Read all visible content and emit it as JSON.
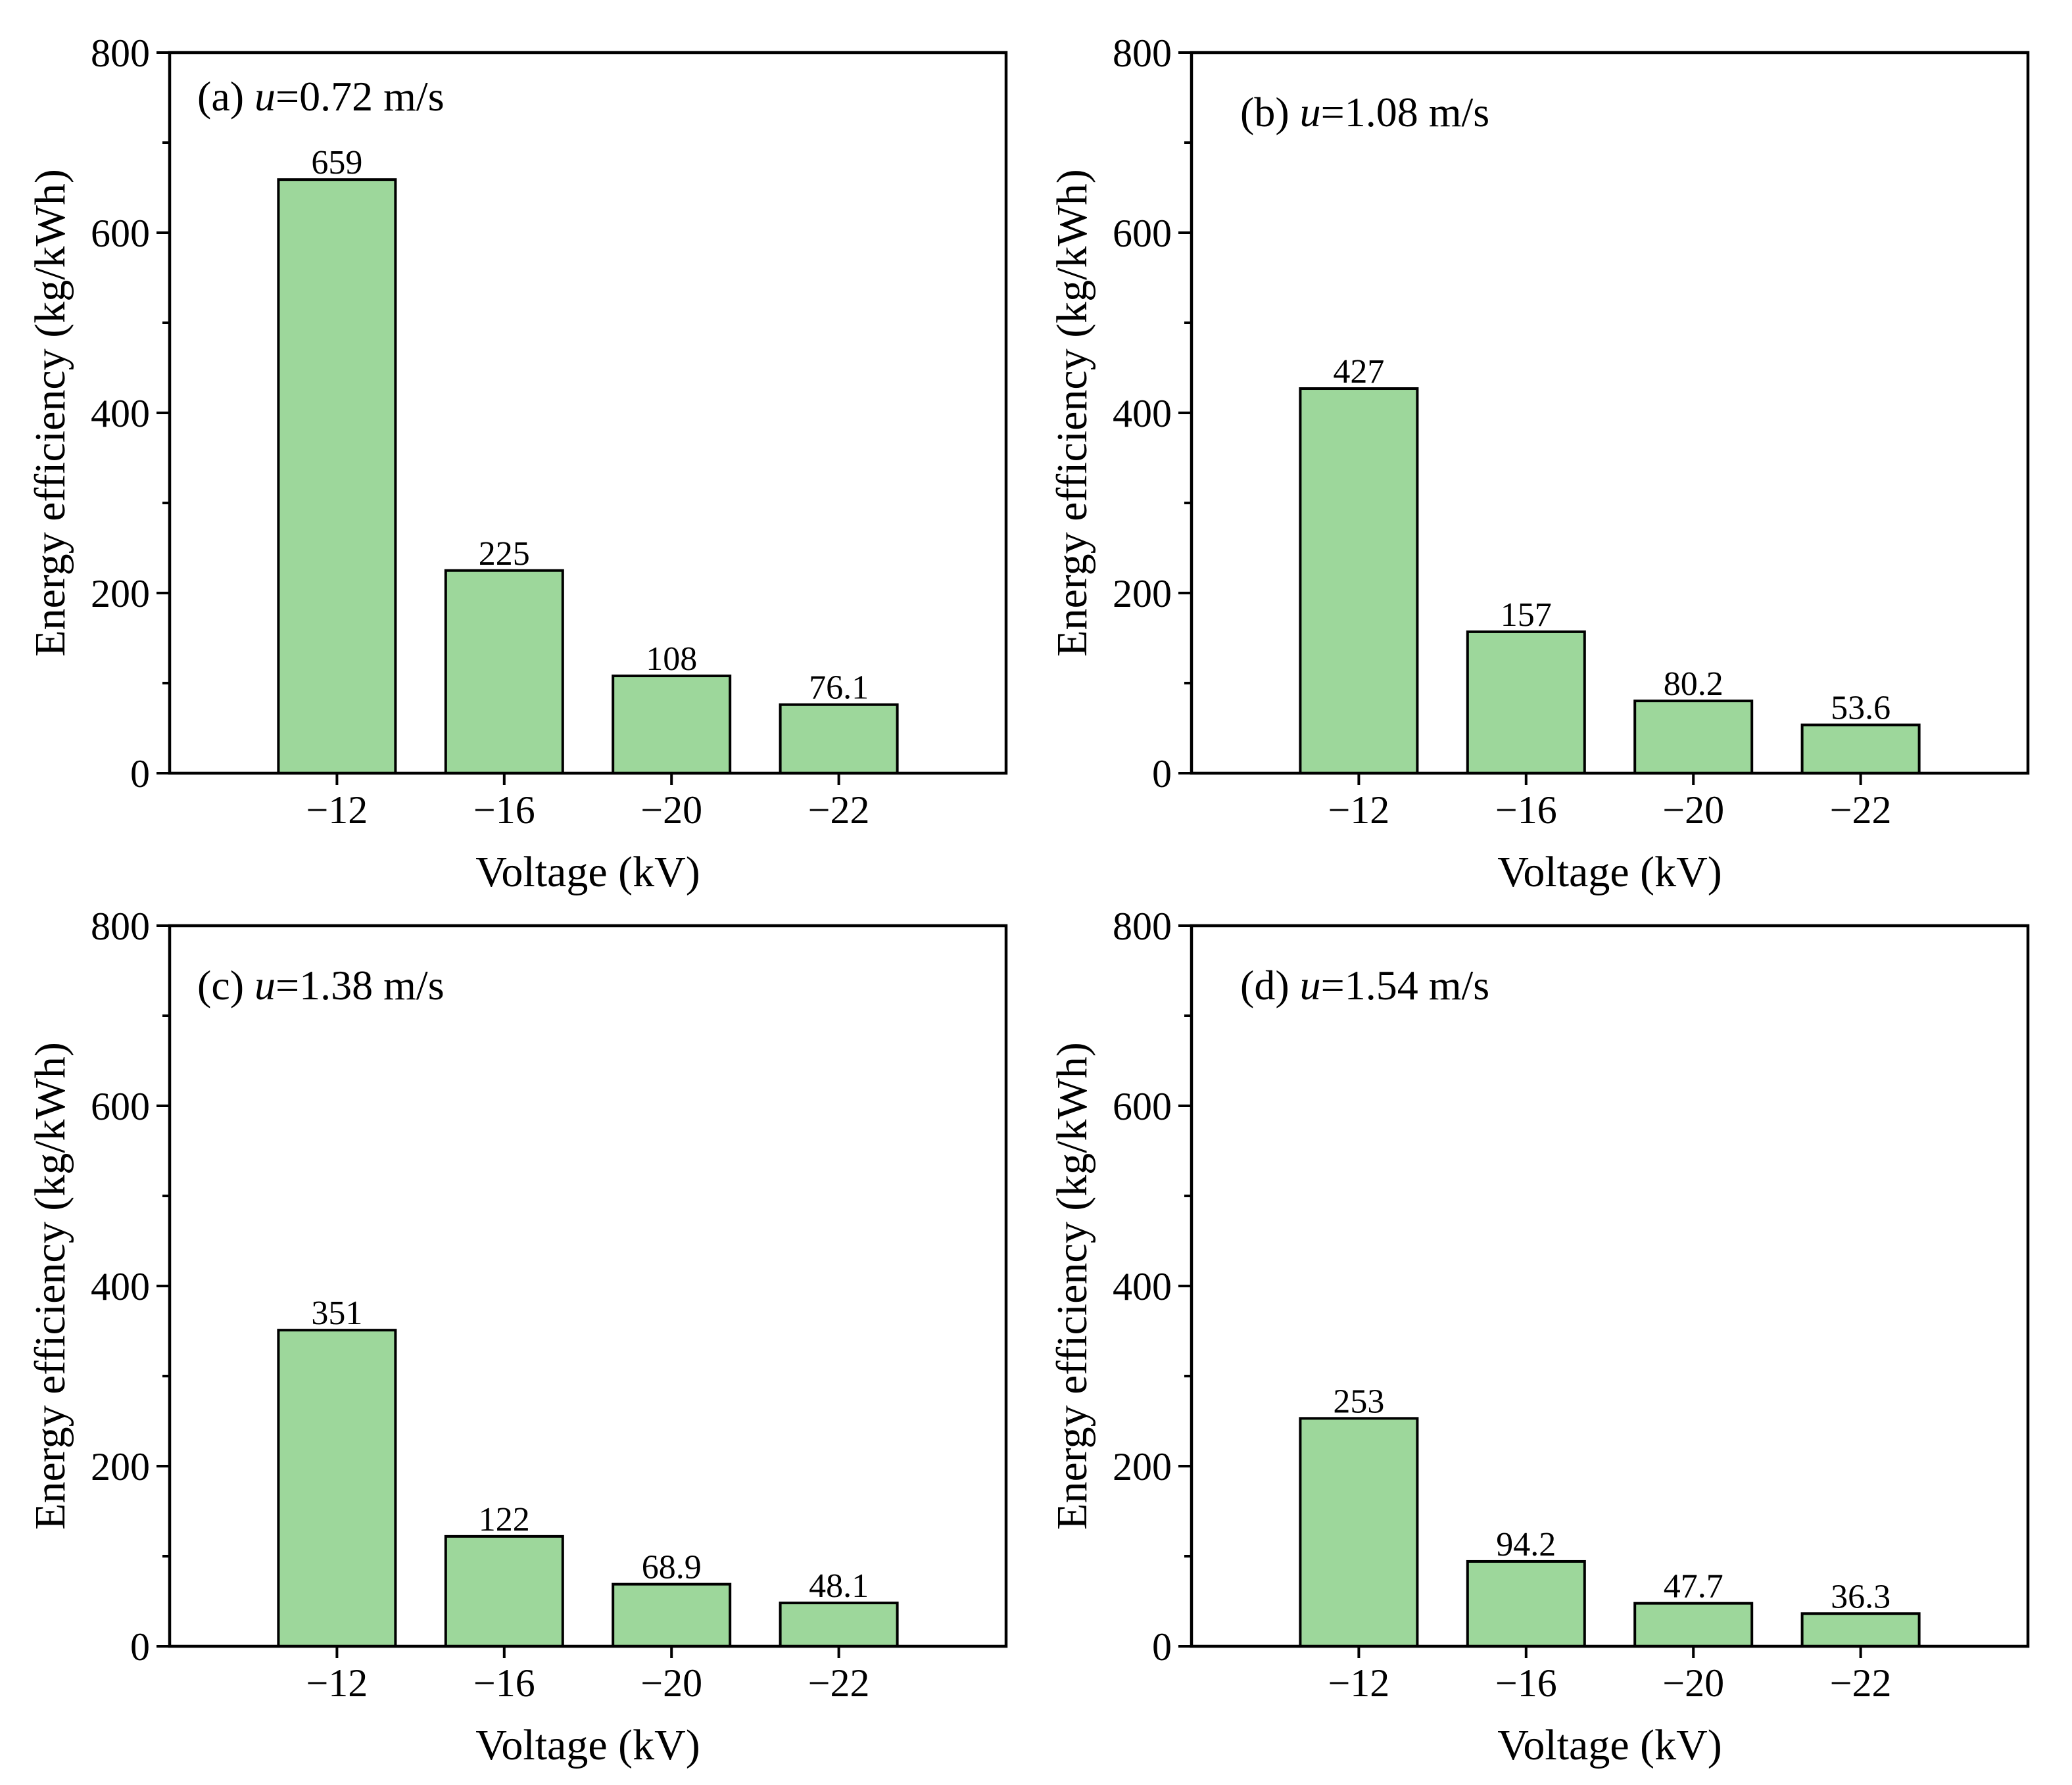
{
  "colors": {
    "bar_fill": "#9dd79b",
    "bar_stroke": "#000000",
    "axis": "#000000"
  },
  "chart_data": [
    {
      "type": "bar",
      "panel_tag": "(a)",
      "panel_var": "u",
      "panel_value": "=0.72 m/s",
      "categories": [
        "−12",
        "−16",
        "−20",
        "−22"
      ],
      "values": [
        659,
        225,
        108,
        76.1
      ],
      "value_labels": [
        "659",
        "225",
        "108",
        "76.1"
      ],
      "xlabel": "Voltage (kV)",
      "ylabel": "Energy efficiency (kg/kWh)",
      "ylim": [
        0,
        800
      ],
      "yticks": [
        0,
        200,
        400,
        600,
        800
      ],
      "ytick_labels": [
        "0",
        "200",
        "400",
        "600",
        "800"
      ],
      "grid": false
    },
    {
      "type": "bar",
      "panel_tag": "(b)",
      "panel_var": "u",
      "panel_value": "=1.08 m/s",
      "categories": [
        "−12",
        "−16",
        "−20",
        "−22"
      ],
      "values": [
        427,
        157,
        80.2,
        53.6
      ],
      "value_labels": [
        "427",
        "157",
        "80.2",
        "53.6"
      ],
      "xlabel": "Voltage (kV)",
      "ylabel": "Energy efficiency (kg/kWh)",
      "ylim": [
        0,
        800
      ],
      "yticks": [
        0,
        200,
        400,
        600,
        800
      ],
      "ytick_labels": [
        "0",
        "200",
        "400",
        "600",
        "800"
      ],
      "grid": false
    },
    {
      "type": "bar",
      "panel_tag": "(c)",
      "panel_var": "u",
      "panel_value": "=1.38 m/s",
      "categories": [
        "−12",
        "−16",
        "−20",
        "−22"
      ],
      "values": [
        351,
        122,
        68.9,
        48.1
      ],
      "value_labels": [
        "351",
        "122",
        "68.9",
        "48.1"
      ],
      "xlabel": "Voltage (kV)",
      "ylabel": "Energy efficiency (kg/kWh)",
      "ylim": [
        0,
        800
      ],
      "yticks": [
        0,
        200,
        400,
        600,
        800
      ],
      "ytick_labels": [
        "0",
        "200",
        "400",
        "600",
        "800"
      ],
      "grid": false
    },
    {
      "type": "bar",
      "panel_tag": "(d)",
      "panel_var": "u",
      "panel_value": "=1.54 m/s",
      "categories": [
        "−12",
        "−16",
        "−20",
        "−22"
      ],
      "values": [
        253,
        94.2,
        47.7,
        36.3
      ],
      "value_labels": [
        "253",
        "94.2",
        "47.7",
        "36.3"
      ],
      "xlabel": "Voltage (kV)",
      "ylabel": "Energy efficiency (kg/kWh)",
      "ylim": [
        0,
        800
      ],
      "yticks": [
        0,
        200,
        400,
        600,
        800
      ],
      "ytick_labels": [
        "0",
        "200",
        "400",
        "600",
        "800"
      ],
      "grid": false
    }
  ]
}
